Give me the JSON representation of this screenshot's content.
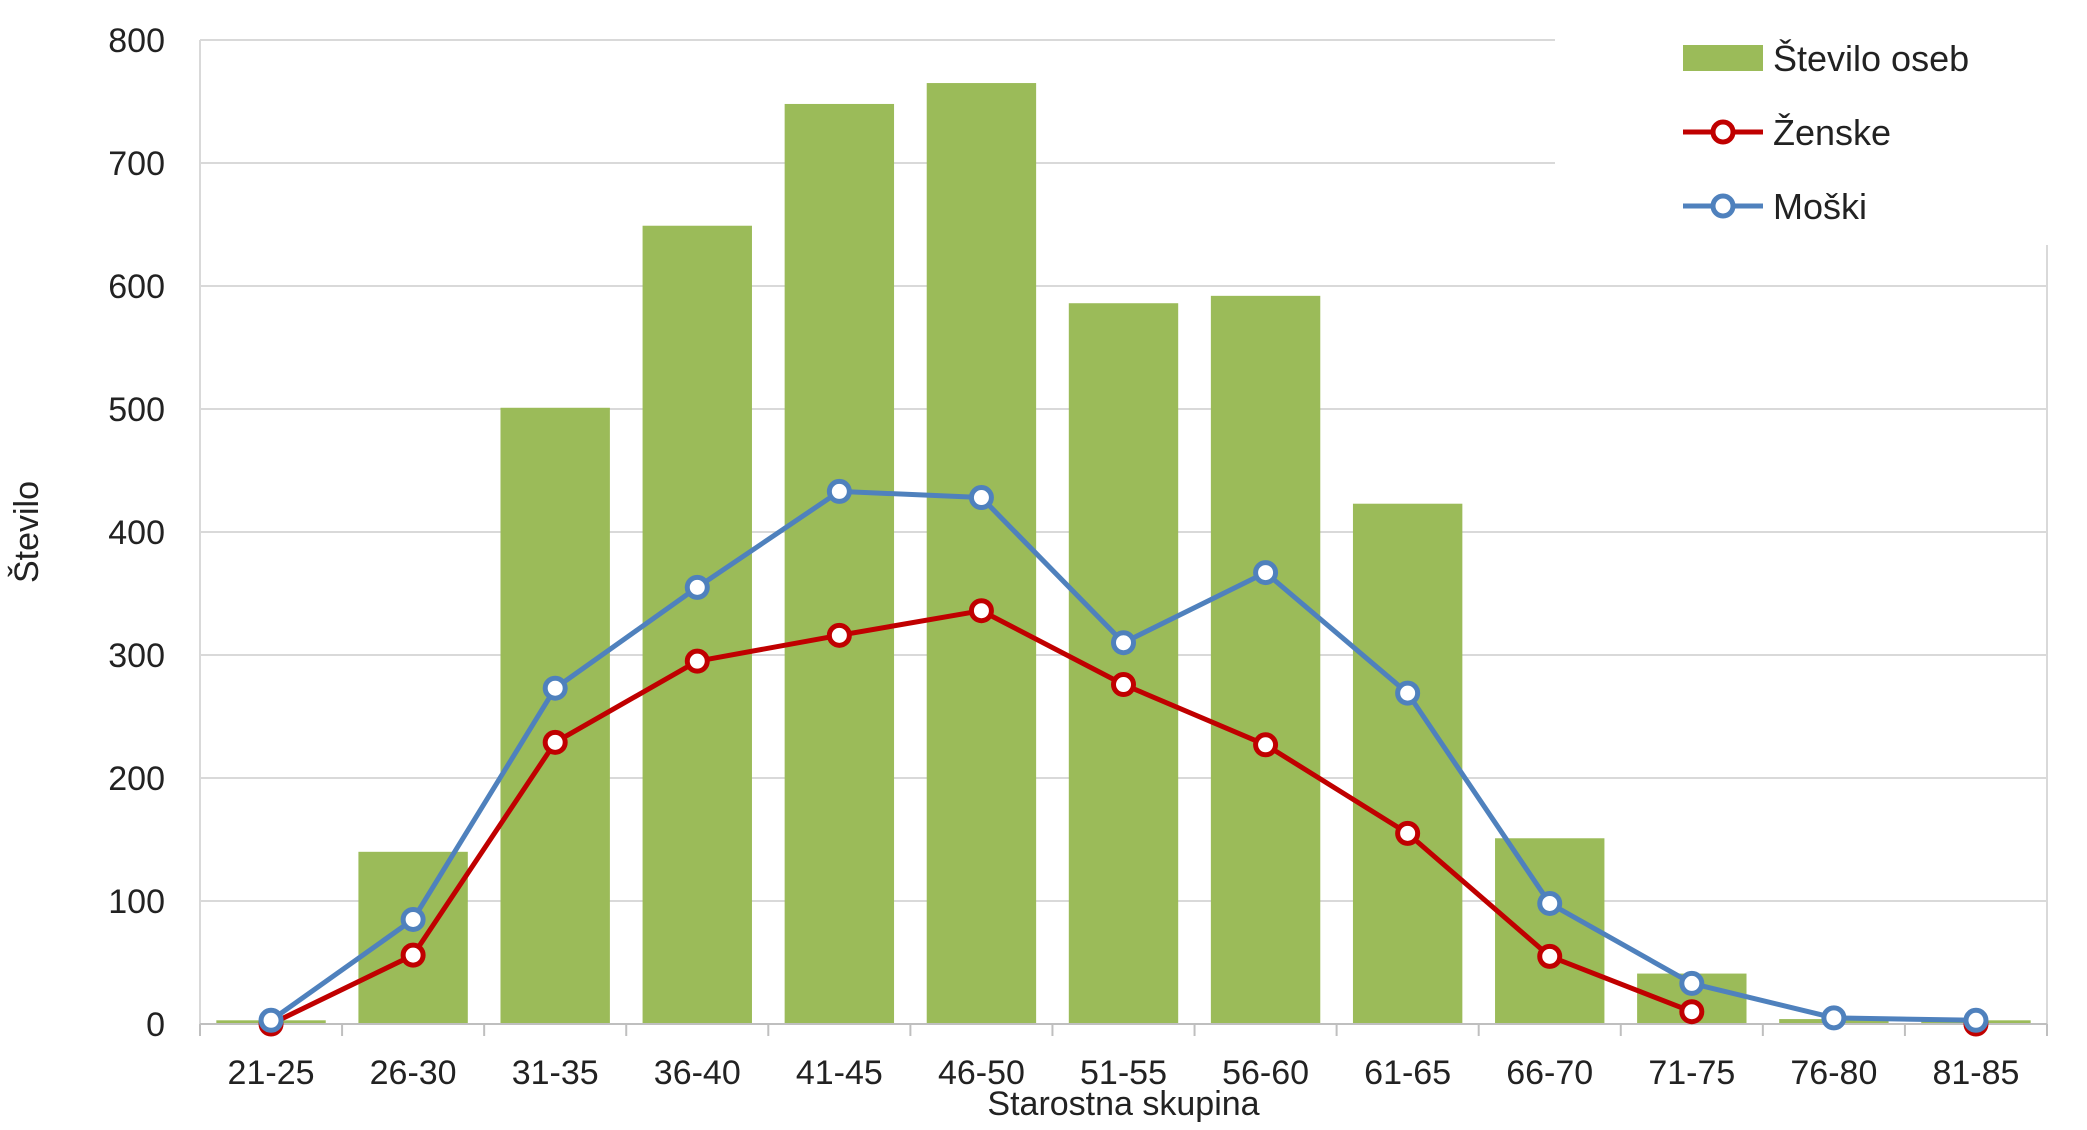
{
  "chart_data": {
    "type": "bar",
    "title": "",
    "xlabel": "Starostna skupina",
    "ylabel": "Število",
    "ylim": [
      0,
      800
    ],
    "yticks": [
      0,
      100,
      200,
      300,
      400,
      500,
      600,
      700,
      800
    ],
    "grid": "horizontal",
    "legend_position": "top-right",
    "categories": [
      "21-25",
      "26-30",
      "31-35",
      "36-40",
      "41-45",
      "46-50",
      "51-55",
      "56-60",
      "61-65",
      "66-70",
      "71-75",
      "76-80",
      "81-85"
    ],
    "series": [
      {
        "name": "Število oseb",
        "type": "bar",
        "color": "#9BBB59",
        "values": [
          3,
          140,
          501,
          649,
          748,
          765,
          586,
          592,
          423,
          151,
          41,
          4,
          3
        ]
      },
      {
        "name": "Ženske",
        "type": "line",
        "color": "#C00000",
        "values": [
          0,
          56,
          229,
          295,
          316,
          336,
          276,
          227,
          155,
          55,
          10,
          null,
          0
        ]
      },
      {
        "name": "Moški",
        "type": "line",
        "color": "#4F81BD",
        "values": [
          3,
          85,
          273,
          355,
          433,
          428,
          310,
          367,
          269,
          98,
          33,
          5,
          3
        ]
      }
    ]
  }
}
